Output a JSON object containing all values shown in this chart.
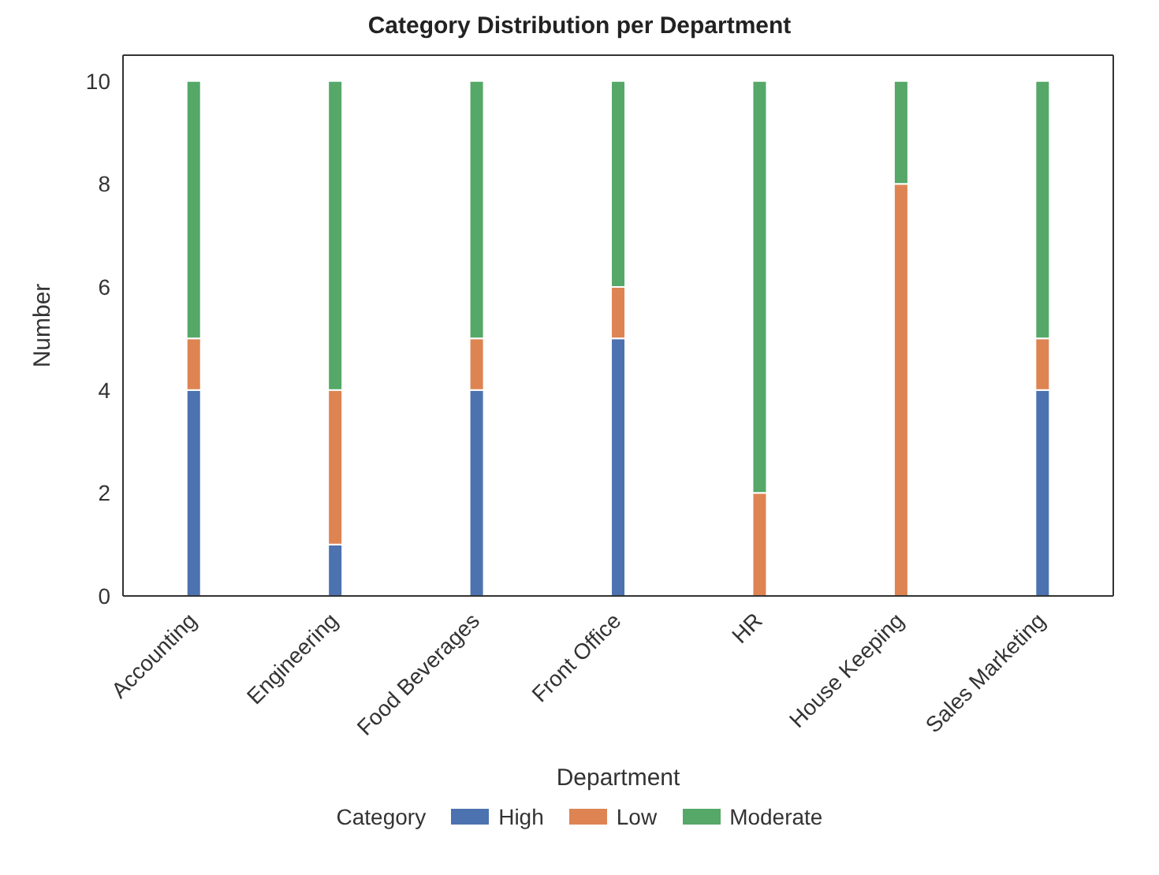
{
  "chart_data": {
    "type": "bar",
    "title": "Category Distribution per Department",
    "xlabel": "Department",
    "ylabel": "Number",
    "legend_title": "Category",
    "stacked": true,
    "legend": "bottom",
    "grid": false,
    "categories": [
      "Accounting",
      "Engineering",
      "Food Beverages",
      "Front Office",
      "HR",
      "House Keeping",
      "Sales Marketing"
    ],
    "ylim": [
      0,
      10.5
    ],
    "yticks": [
      0,
      2,
      4,
      6,
      8,
      10
    ],
    "series": [
      {
        "name": "High",
        "color": "#4c72b0",
        "values": [
          4,
          1,
          4,
          5,
          0,
          0,
          4
        ]
      },
      {
        "name": "Low",
        "color": "#dd8452",
        "values": [
          1,
          3,
          1,
          1,
          2,
          8,
          1
        ]
      },
      {
        "name": "Moderate",
        "color": "#55a868",
        "values": [
          5,
          6,
          5,
          4,
          8,
          2,
          5
        ]
      }
    ]
  }
}
